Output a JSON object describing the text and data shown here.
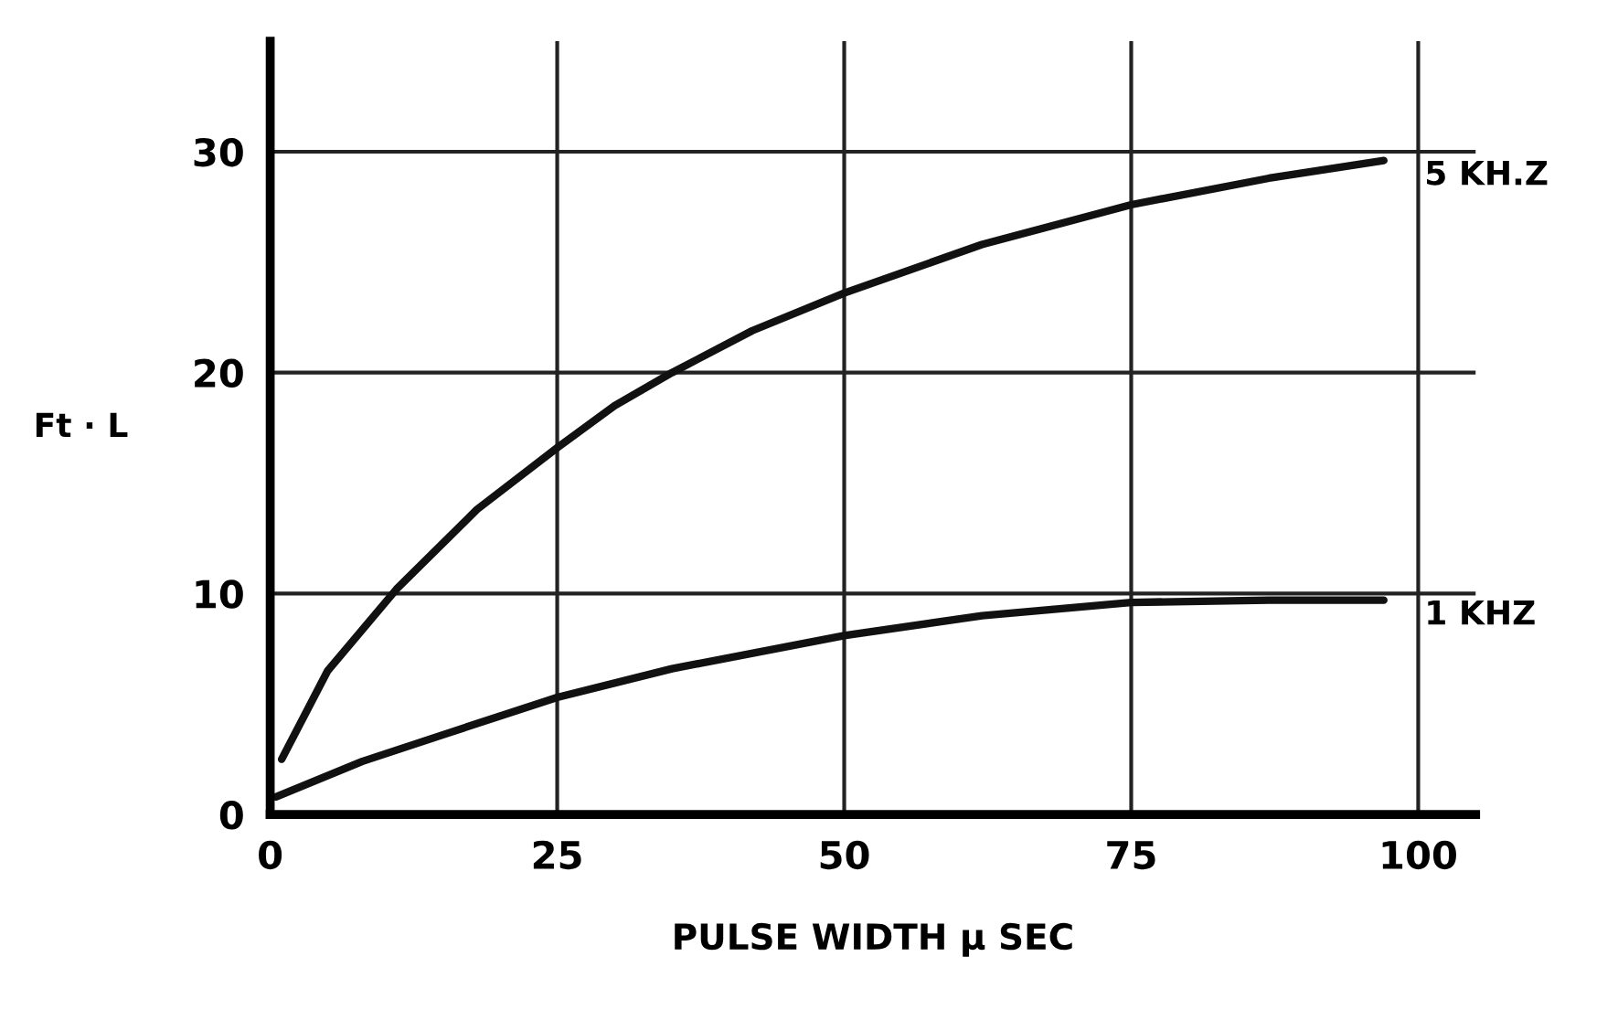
{
  "chart_data": {
    "type": "line",
    "xlabel": "PULSE WIDTH μ SEC",
    "ylabel": "Ft · L",
    "xlim": [
      0,
      105
    ],
    "ylim": [
      0,
      35
    ],
    "xticks": [
      0,
      25,
      50,
      75,
      100
    ],
    "yticks": [
      0,
      10,
      20,
      30
    ],
    "grid": true,
    "legend": false,
    "marker": "none",
    "line_style": "solid",
    "series": [
      {
        "name": "5 KH.Z",
        "color": "#111111",
        "x": [
          1,
          5,
          11,
          18,
          25,
          30,
          35,
          42,
          50,
          62,
          75,
          87,
          97
        ],
        "values": [
          2.5,
          6.5,
          10.2,
          13.8,
          16.6,
          18.5,
          20.0,
          21.9,
          23.6,
          25.8,
          27.6,
          28.8,
          29.6
        ]
      },
      {
        "name": "1 KHZ",
        "color": "#111111",
        "x": [
          0.5,
          8,
          15,
          25,
          35,
          50,
          62,
          75,
          87,
          97
        ],
        "values": [
          0.8,
          2.4,
          3.6,
          5.3,
          6.6,
          8.1,
          9.0,
          9.6,
          9.7,
          9.7
        ]
      }
    ]
  }
}
